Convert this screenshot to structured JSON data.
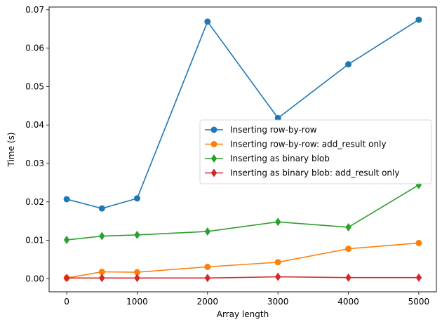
{
  "chart_data": {
    "type": "line",
    "title": "",
    "xlabel": "Array length",
    "ylabel": "Time (s)",
    "xlim": [
      -250,
      5250
    ],
    "ylim": [
      -0.0034,
      0.0707
    ],
    "xticks": [
      0,
      1000,
      2000,
      3000,
      4000,
      5000
    ],
    "xtick_labels": [
      "0",
      "1000",
      "2000",
      "3000",
      "4000",
      "5000"
    ],
    "yticks": [
      0.0,
      0.01,
      0.02,
      0.03,
      0.04,
      0.05,
      0.06,
      0.07
    ],
    "ytick_labels": [
      "0.00",
      "0.01",
      "0.02",
      "0.03",
      "0.04",
      "0.05",
      "0.06",
      "0.07"
    ],
    "grid": false,
    "legend_position": "center-right",
    "x": [
      0,
      500,
      1000,
      2000,
      3000,
      4000,
      5000
    ],
    "series": [
      {
        "name": "Inserting row-by-row",
        "color": "#1f77b4",
        "marker": "circle",
        "values": [
          0.0207,
          0.0183,
          0.0209,
          0.0669,
          0.0418,
          0.0558,
          0.0674
        ]
      },
      {
        "name": "Inserting row-by-row: add_result only",
        "color": "#ff7f0e",
        "marker": "circle",
        "values": [
          0.0002,
          0.0018,
          0.0017,
          0.0031,
          0.0043,
          0.0078,
          0.0093
        ]
      },
      {
        "name": "Inserting as binary blob",
        "color": "#2ca02c",
        "marker": "diamond",
        "values": [
          0.0101,
          0.0111,
          0.0114,
          0.0123,
          0.0148,
          0.0134,
          0.0244
        ]
      },
      {
        "name": "Inserting as binary blob: add_result only",
        "color": "#d62728",
        "marker": "diamond",
        "values": [
          0.0002,
          0.0002,
          0.0002,
          0.0002,
          0.0005,
          0.0003,
          0.0003
        ]
      }
    ]
  }
}
